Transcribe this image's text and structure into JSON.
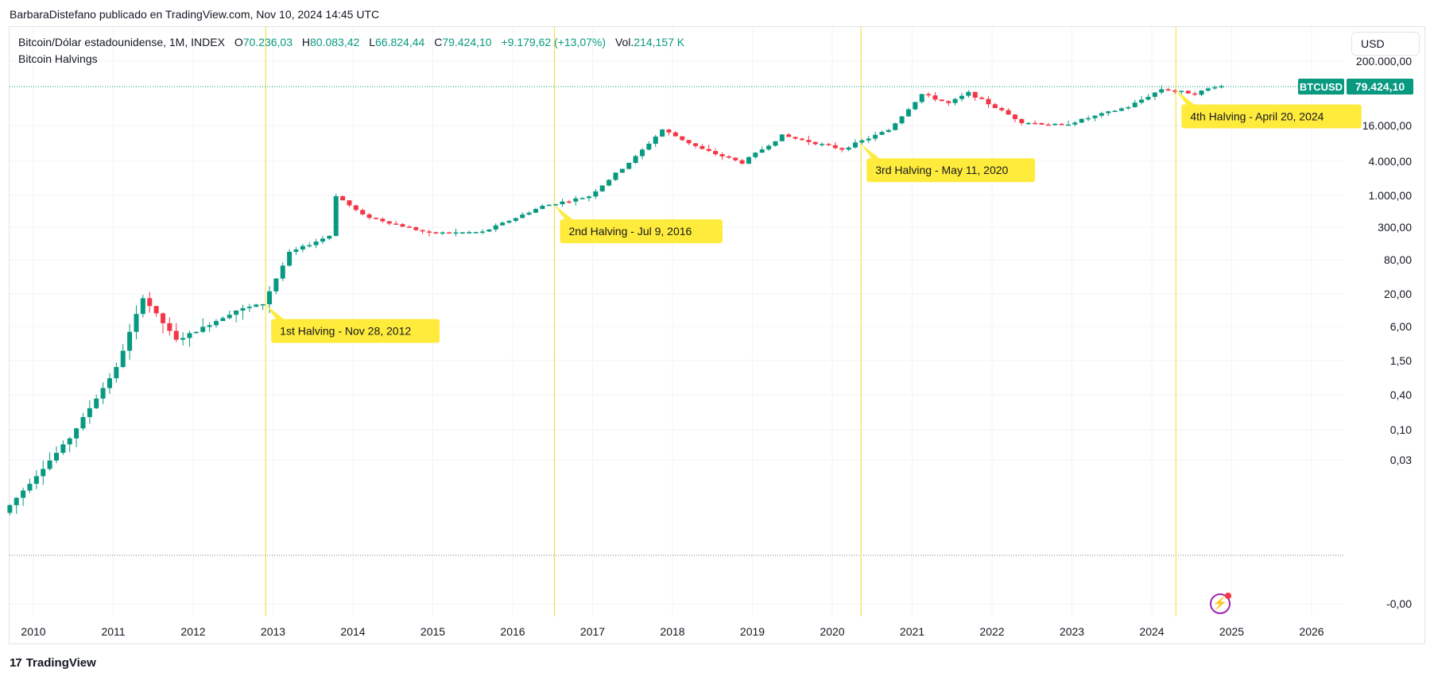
{
  "published_by": "BarbaraDistefano publicado en TradingView.com, Nov 10, 2024 14:45 UTC",
  "header": {
    "instrument": "Bitcoin/Dólar estadounidense, 1M, INDEX",
    "o_label": "O",
    "o_value": "70.236,03",
    "h_label": "H",
    "h_value": "80.083,42",
    "l_label": "L",
    "l_value": "66.824,44",
    "c_label": "C",
    "c_value": "79.424,10",
    "change": "+9.179,62 (+13,07%)",
    "vol_label": "Vol.",
    "vol_value": "214,157 K",
    "study": "Bitcoin Halvings"
  },
  "currency_button": "USD",
  "footer_brand": "TradingView",
  "colors": {
    "up": "#089981",
    "down": "#f23645",
    "halving_line": "#f7e04b",
    "halving_label_bg": "#ffeb3b",
    "grid": "#f0f3fa"
  },
  "chart_data": {
    "type": "candlestick",
    "scale": "log",
    "symbol": "BTCUSD",
    "last_price": "79.424,10",
    "y_ticks": [
      "200.000,00",
      "16.000,00",
      "4.000,00",
      "1.000,00",
      "300,00",
      "80,00",
      "20,00",
      "6,00",
      "1,50",
      "0,40",
      "0,10",
      "0,03",
      "-0,00"
    ],
    "x_ticks": [
      "2010",
      "2011",
      "2012",
      "2013",
      "2014",
      "2015",
      "2016",
      "2017",
      "2018",
      "2019",
      "2020",
      "2021",
      "2022",
      "2023",
      "2024",
      "2025",
      "2026"
    ],
    "halvings": [
      {
        "date": "2012-11-28",
        "label": "1st Halving - Nov 28, 2012"
      },
      {
        "date": "2016-07-09",
        "label": "2nd Halving - Jul 9, 2016"
      },
      {
        "date": "2020-05-11",
        "label": "3rd Halving - May 11, 2020"
      },
      {
        "date": "2024-04-20",
        "label": "4th Halving - April 20, 2024"
      }
    ],
    "series_points": [
      [
        "2009-09",
        0.003
      ],
      [
        "2010-07",
        0.06
      ],
      [
        "2010-10",
        0.2
      ],
      [
        "2011-02",
        1.0
      ],
      [
        "2011-06",
        17
      ],
      [
        "2011-11",
        3
      ],
      [
        "2012-03",
        5
      ],
      [
        "2012-08",
        10
      ],
      [
        "2012-12",
        13
      ],
      [
        "2013-04",
        100
      ],
      [
        "2013-10",
        200
      ],
      [
        "2013-11",
        1000
      ],
      [
        "2014-03",
        450
      ],
      [
        "2015-01",
        220
      ],
      [
        "2015-09",
        230
      ],
      [
        "2016-06",
        650
      ],
      [
        "2017-01",
        970
      ],
      [
        "2017-08",
        4700
      ],
      [
        "2017-12",
        14000
      ],
      [
        "2018-06",
        6300
      ],
      [
        "2018-12",
        3700
      ],
      [
        "2019-06",
        11000
      ],
      [
        "2020-03",
        6400
      ],
      [
        "2020-10",
        13800
      ],
      [
        "2021-03",
        58000
      ],
      [
        "2021-07",
        40000
      ],
      [
        "2021-10",
        61000
      ],
      [
        "2022-06",
        19000
      ],
      [
        "2022-12",
        16500
      ],
      [
        "2023-10",
        35000
      ],
      [
        "2024-03",
        71000
      ],
      [
        "2024-08",
        59000
      ],
      [
        "2024-11",
        79424
      ]
    ]
  }
}
